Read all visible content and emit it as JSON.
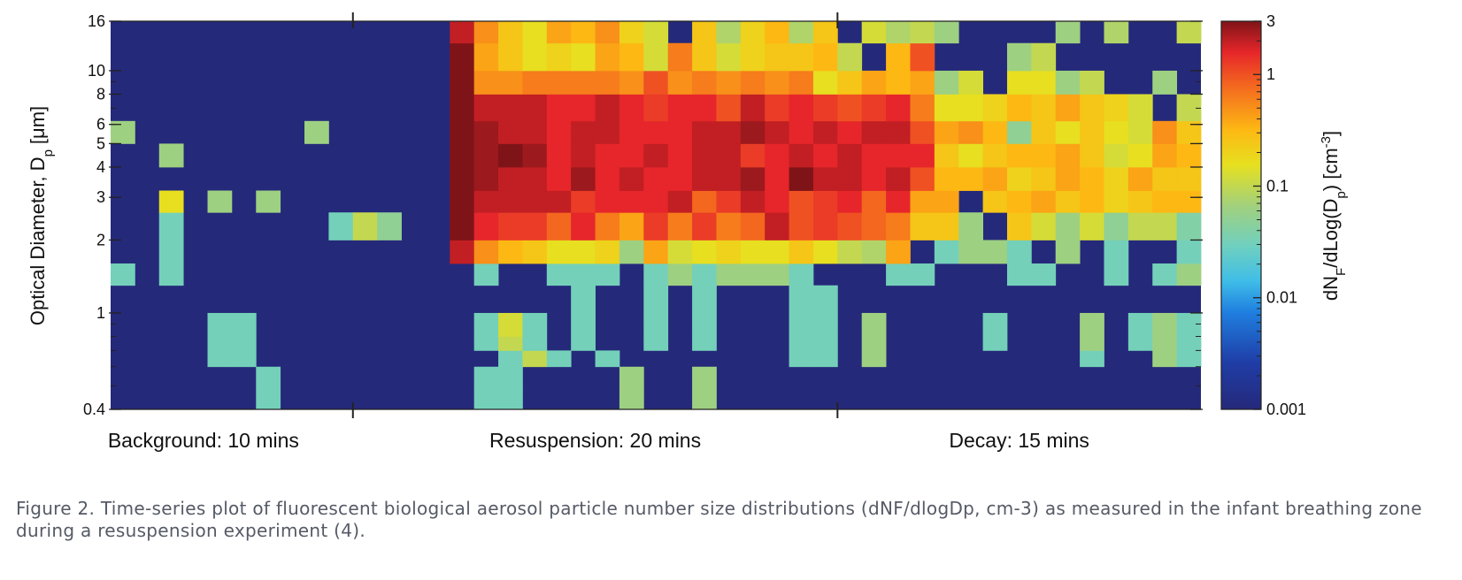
{
  "chart_data": {
    "type": "heatmap",
    "title": "",
    "ylabel": "Optical Diameter, D",
    "ylabel_sub": "p",
    "ylabel_unit": "[μm]",
    "colorbar_label": {
      "prefix": "dN",
      "sub1": "F",
      "mid": "/dLog(D",
      "sub2": "p",
      "mid2": ") [cm",
      "sup": "-3",
      "suffix": "]"
    },
    "y_scale": "log",
    "ylim": [
      0.4,
      16
    ],
    "y_major_ticks": [
      0.4,
      1,
      2,
      3,
      4,
      5,
      6,
      8,
      10,
      16
    ],
    "y_tick_labels": [
      "0.4",
      "1",
      "2",
      "3",
      "4",
      "5",
      "6",
      "8",
      "10",
      "16"
    ],
    "color_scale": "log",
    "clim": [
      0.001,
      3
    ],
    "colorbar_ticks": [
      0.001,
      0.01,
      0.1,
      1,
      3
    ],
    "colorbar_tick_labels": [
      "0.001",
      "0.01",
      "0.1",
      "1",
      "3"
    ],
    "colormap": "jet",
    "x_phase_labels": [
      "Background: 10 mins",
      "Resuspension: 20 mins",
      "Decay: 15 mins"
    ],
    "x_phase_duration_bins": [
      10,
      20,
      15
    ],
    "time_bins": 45,
    "size_bin_edges": [
      0.4,
      0.5,
      0.6,
      0.7,
      0.8,
      0.9,
      1.0,
      1.3,
      1.6,
      2.0,
      2.6,
      3.2,
      4.0,
      5.0,
      6.2,
      8.0,
      10.0,
      13.0,
      16.0
    ],
    "size_bins_bottom_up": [
      "0.4-0.5",
      "0.5-0.6",
      "0.6-0.7",
      "0.7-0.8",
      "0.8-0.9",
      "0.9-1.0",
      "1.0-1.3",
      "1.3-1.6",
      "1.6-2.0",
      "2.0-2.6",
      "2.6-3.2",
      "3.2-4.0",
      "4.0-5.0",
      "5.0-6.2",
      "6.2-8.0",
      "8.0-10",
      "10-13",
      "13-16"
    ],
    "values_note": "Rows are size bins (bottom-up, index 0 = 0.4-0.5 μm). Columns are 1-minute time bins. Values are log10(dNF/dlogDp [cm-3]); -3 = background (≤0.001).",
    "values_log10": [
      [
        -3,
        -3,
        -3,
        -3,
        -3,
        -3,
        -1.5,
        -3,
        -3,
        -3,
        -3,
        -3,
        -3,
        -3,
        -3,
        -1.5,
        -1.5,
        -3,
        -3,
        -3,
        -3,
        -1.2,
        -3,
        -3,
        -1.2,
        -3,
        -3,
        -3,
        -3,
        -3,
        -3,
        -3,
        -3,
        -3,
        -3,
        -3,
        -3,
        -3,
        -3,
        -3,
        -3,
        -3,
        -3,
        -3,
        -3
      ],
      [
        -3,
        -3,
        -3,
        -3,
        -3,
        -3,
        -1.5,
        -3,
        -3,
        -3,
        -3,
        -3,
        -3,
        -3,
        -3,
        -1.5,
        -1.5,
        -3,
        -3,
        -3,
        -3,
        -1.2,
        -3,
        -3,
        -1.2,
        -3,
        -3,
        -3,
        -3,
        -3,
        -3,
        -3,
        -3,
        -3,
        -3,
        -3,
        -3,
        -3,
        -3,
        -3,
        -3,
        -3,
        -3,
        -3,
        -3
      ],
      [
        -3,
        -3,
        -3,
        -3,
        -1.5,
        -1.5,
        -3,
        -3,
        -3,
        -3,
        -3,
        -3,
        -3,
        -3,
        -3,
        -3,
        -1.5,
        -1.0,
        -1.5,
        -3,
        -1.5,
        -3,
        -3,
        -3,
        -3,
        -3,
        -3,
        -3,
        -1.5,
        -1.5,
        -3,
        -1.2,
        -3,
        -3,
        -3,
        -3,
        -3,
        -3,
        -3,
        -3,
        -1.5,
        -3,
        -3,
        -1.2,
        -1.5
      ],
      [
        -3,
        -3,
        -3,
        -3,
        -1.5,
        -1.5,
        -3,
        -3,
        -3,
        -3,
        -3,
        -3,
        -3,
        -3,
        -3,
        -1.5,
        -1.0,
        -1.5,
        -3,
        -1.5,
        -3,
        -3,
        -1.5,
        -3,
        -1.5,
        -3,
        -3,
        -3,
        -1.5,
        -1.5,
        -3,
        -1.2,
        -3,
        -3,
        -3,
        -3,
        -1.5,
        -3,
        -3,
        -3,
        -1.2,
        -3,
        -1.5,
        -1.2,
        -1.5
      ],
      [
        -3,
        -3,
        -3,
        -3,
        -1.5,
        -1.5,
        -3,
        -3,
        -3,
        -3,
        -3,
        -3,
        -3,
        -3,
        -3,
        -1.5,
        -0.9,
        -1.5,
        -3,
        -1.5,
        -3,
        -3,
        -1.5,
        -3,
        -1.5,
        -3,
        -3,
        -3,
        -1.5,
        -1.5,
        -3,
        -1.2,
        -3,
        -3,
        -3,
        -3,
        -1.5,
        -3,
        -3,
        -3,
        -1.2,
        -3,
        -1.5,
        -1.2,
        -1.5
      ],
      [
        -3,
        -3,
        -3,
        -3,
        -1.5,
        -1.5,
        -3,
        -3,
        -3,
        -3,
        -3,
        -3,
        -3,
        -3,
        -3,
        -1.5,
        -0.9,
        -1.5,
        -3,
        -1.5,
        -3,
        -3,
        -1.5,
        -3,
        -1.5,
        -3,
        -3,
        -3,
        -1.5,
        -1.5,
        -3,
        -1.2,
        -3,
        -3,
        -3,
        -3,
        -1.5,
        -3,
        -3,
        -3,
        -1.2,
        -3,
        -1.5,
        -1.2,
        -1.5
      ],
      [
        -3,
        -3,
        -3,
        -3,
        -3,
        -3,
        -3,
        -3,
        -3,
        -3,
        -3,
        -3,
        -3,
        -3,
        -3,
        -3,
        -3,
        -3,
        -3,
        -1.5,
        -3,
        -3,
        -1.5,
        -3,
        -1.5,
        -3,
        -3,
        -3,
        -1.5,
        -1.5,
        -3,
        -3,
        -3,
        -3,
        -3,
        -3,
        -3,
        -3,
        -3,
        -3,
        -3,
        -3,
        -3,
        -3,
        -3
      ],
      [
        -1.5,
        -3,
        -1.5,
        -3,
        -3,
        -3,
        -3,
        -3,
        -3,
        -3,
        -3,
        -3,
        -3,
        -3,
        -3,
        -1.5,
        -3,
        -3,
        -1.5,
        -1.5,
        -1.5,
        -3,
        -1.5,
        -1.2,
        -1.5,
        -1.2,
        -1.2,
        -1.2,
        -1.5,
        -3,
        -3,
        -3,
        -1.5,
        -1.5,
        -3,
        -3,
        -3,
        -1.5,
        -1.5,
        -3,
        -3,
        -1.5,
        -3,
        -1.5,
        -1.2
      ],
      [
        -3,
        -3,
        -1.5,
        -3,
        -3,
        -3,
        -3,
        -3,
        -3,
        -3,
        -3,
        -3,
        -3,
        -3,
        0.3,
        -0.3,
        -0.5,
        -0.6,
        -0.8,
        -0.8,
        -0.7,
        -1.2,
        -0.4,
        -0.9,
        -0.8,
        -0.7,
        -0.8,
        -0.8,
        -0.6,
        -0.8,
        -1.0,
        -1.1,
        -0.4,
        -3,
        -1.5,
        -1.2,
        -1.2,
        -1.5,
        -3,
        -1.2,
        -3,
        -1.5,
        -3,
        -3,
        -1.5
      ],
      [
        -3,
        -3,
        -1.5,
        -3,
        -3,
        -3,
        -3,
        -3,
        -3,
        -1.5,
        -1.0,
        -1.3,
        -3,
        -3,
        0.5,
        0.2,
        0.1,
        0.1,
        -0.1,
        0.2,
        -0.2,
        -0.4,
        0.1,
        -0.2,
        0.1,
        -0.2,
        -0.1,
        0.3,
        0.0,
        0.1,
        0.0,
        -0.1,
        -0.2,
        -0.6,
        -0.6,
        -1.2,
        -3,
        -0.6,
        -0.9,
        -1.2,
        -0.9,
        -1.3,
        -1.0,
        -1.0,
        -1.4
      ],
      [
        -3,
        -3,
        -0.8,
        -3,
        -1.2,
        -3,
        -1.2,
        -3,
        -3,
        -3,
        -3,
        -3,
        -3,
        -3,
        0.5,
        0.3,
        0.3,
        0.3,
        0.3,
        0.1,
        0.2,
        0.2,
        0.2,
        0.3,
        -0.1,
        0.1,
        0.3,
        0.2,
        0.0,
        0.1,
        0.2,
        -0.1,
        0.2,
        -0.4,
        -0.4,
        -3,
        -0.6,
        -0.5,
        -0.4,
        -0.6,
        -0.5,
        -0.7,
        -0.6,
        -0.5,
        -0.5
      ],
      [
        -3,
        -3,
        -3,
        -3,
        -3,
        -3,
        -3,
        -3,
        -3,
        -3,
        -3,
        -3,
        -3,
        -3,
        0.5,
        0.4,
        0.3,
        0.3,
        0.2,
        0.4,
        0.2,
        0.3,
        0.2,
        0.2,
        0.3,
        0.3,
        0.4,
        0.2,
        0.5,
        0.3,
        0.3,
        0.2,
        0.3,
        0.0,
        -0.5,
        -0.5,
        -0.4,
        -0.7,
        -0.6,
        -0.4,
        -0.5,
        -0.7,
        -0.4,
        -0.6,
        -0.6
      ],
      [
        -3,
        -3,
        -1.2,
        -3,
        -3,
        -3,
        -3,
        -3,
        -3,
        -3,
        -3,
        -3,
        -3,
        -3,
        0.5,
        0.4,
        0.5,
        0.4,
        0.2,
        0.3,
        0.2,
        0.2,
        0.3,
        0.2,
        0.3,
        0.3,
        0.1,
        0.2,
        0.3,
        0.2,
        0.3,
        0.2,
        0.2,
        0.2,
        -0.6,
        -0.8,
        -0.6,
        -0.5,
        -0.5,
        -0.4,
        -0.6,
        -0.9,
        -0.8,
        -0.4,
        -0.5
      ],
      [
        -1.2,
        -3,
        -3,
        -3,
        -3,
        -3,
        -3,
        -3,
        -1.2,
        -3,
        -3,
        -3,
        -3,
        -3,
        0.5,
        0.4,
        0.3,
        0.3,
        0.2,
        0.3,
        0.3,
        0.2,
        0.2,
        0.2,
        0.3,
        0.3,
        0.4,
        0.3,
        0.2,
        0.3,
        0.2,
        0.3,
        0.3,
        0.0,
        -0.4,
        -0.3,
        -0.5,
        -1.3,
        -0.6,
        -0.8,
        -0.6,
        -0.8,
        -0.9,
        -0.3,
        -0.6
      ],
      [
        -3,
        -3,
        -3,
        -3,
        -3,
        -3,
        -3,
        -3,
        -3,
        -3,
        -3,
        -3,
        -3,
        -3,
        0.5,
        0.3,
        0.3,
        0.3,
        0.2,
        0.2,
        0.3,
        0.2,
        0.1,
        0.2,
        0.2,
        0.0,
        0.3,
        0.1,
        0.2,
        0.1,
        0.0,
        0.1,
        0.2,
        -0.2,
        -0.8,
        -0.8,
        -0.7,
        -0.5,
        -0.6,
        -0.4,
        -0.6,
        -0.7,
        -0.9,
        -3,
        -1.0
      ],
      [
        -3,
        -3,
        -3,
        -3,
        -3,
        -3,
        -3,
        -3,
        -3,
        -3,
        -3,
        -3,
        -3,
        -3,
        0.5,
        -0.3,
        -0.3,
        -0.2,
        -0.2,
        -0.2,
        -0.2,
        -0.3,
        0.0,
        -0.3,
        -0.2,
        -0.3,
        -0.2,
        -0.3,
        -0.2,
        -0.8,
        -0.6,
        -0.4,
        -0.5,
        -0.4,
        -1.2,
        -0.9,
        -3,
        -0.8,
        -0.8,
        -1.2,
        -1.0,
        -3,
        -3,
        -1.2,
        -3
      ],
      [
        -3,
        -3,
        -3,
        -3,
        -3,
        -3,
        -3,
        -3,
        -3,
        -3,
        -3,
        -3,
        -3,
        -3,
        0.5,
        -0.4,
        -0.6,
        -0.8,
        -0.7,
        -0.8,
        -0.4,
        -0.5,
        -0.9,
        -0.2,
        -0.6,
        -0.9,
        -0.7,
        -0.6,
        -0.6,
        -0.5,
        -1.0,
        -3,
        -0.5,
        0.0,
        -3,
        -3,
        -3,
        -1.2,
        -1.0,
        -3,
        -3,
        -3,
        -3,
        -3,
        -3
      ],
      [
        -3,
        -3,
        -3,
        -3,
        -3,
        -3,
        -3,
        -3,
        -3,
        -3,
        -3,
        -3,
        -3,
        -3,
        0.3,
        -0.3,
        -0.6,
        -0.8,
        -0.4,
        -0.5,
        -0.3,
        -0.7,
        -0.9,
        -3,
        -0.6,
        -1.1,
        -0.7,
        -0.5,
        -1.1,
        -0.6,
        -3,
        -0.9,
        -1.1,
        -1.0,
        -1.2,
        -3,
        -3,
        -3,
        -3,
        -1.2,
        -3,
        -1.1,
        -3,
        -3,
        -1.0
      ]
    ]
  },
  "caption": "Figure 2. Time-series plot of fluorescent biological aerosol particle number size distributions (dNF/dlogDp, cm-3) as measured in the infant breathing zone during a resuspension experiment (4)."
}
